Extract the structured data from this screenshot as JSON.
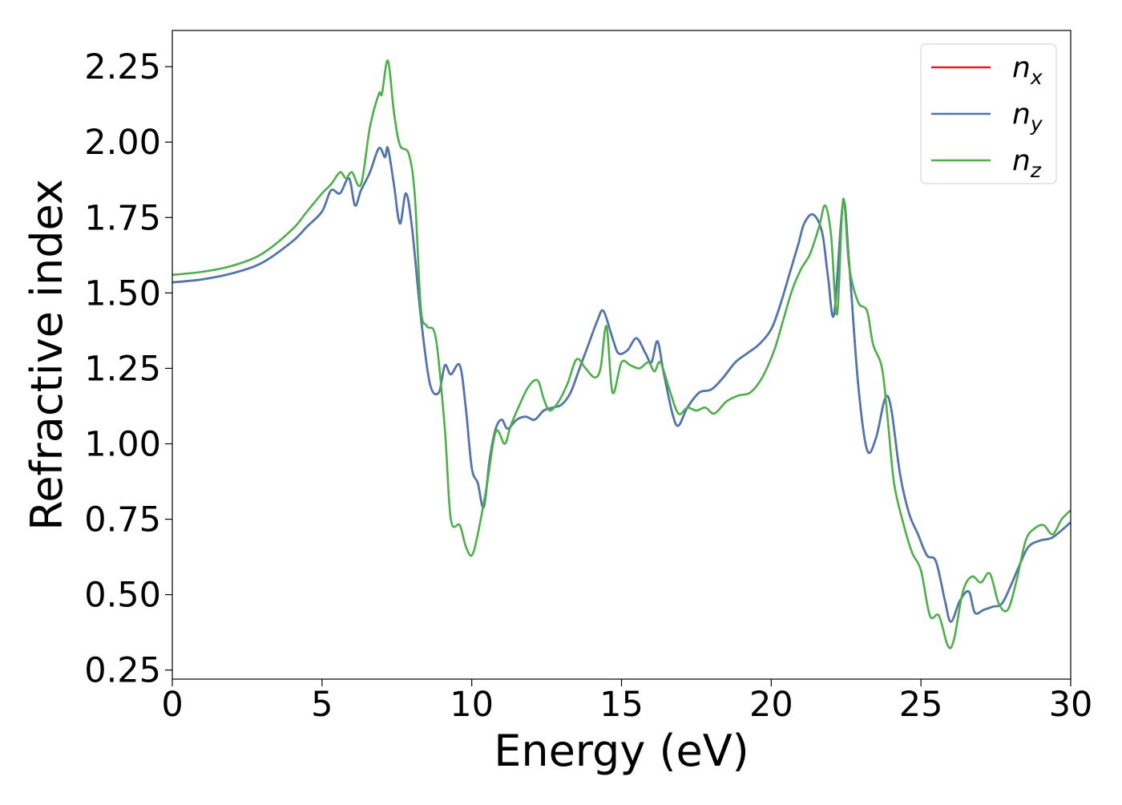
{
  "chart_data": {
    "type": "line",
    "xlabel": "Energy (eV)",
    "ylabel": "Refractive index",
    "xlim": [
      0,
      30
    ],
    "ylim": [
      0.22,
      2.37
    ],
    "xticks": [
      0,
      5,
      10,
      15,
      20,
      25,
      30
    ],
    "xtick_labels": [
      "0",
      "5",
      "10",
      "15",
      "20",
      "25",
      "30"
    ],
    "yticks": [
      0.25,
      0.5,
      0.75,
      1.0,
      1.25,
      1.5,
      1.75,
      2.0,
      2.25
    ],
    "ytick_labels": [
      "0.25",
      "0.50",
      "0.75",
      "1.00",
      "1.25",
      "1.50",
      "1.75",
      "2.00",
      "2.25"
    ],
    "grid": false,
    "legend_position": "top-right",
    "series": [
      {
        "name": "n_x",
        "legend_base": "n",
        "legend_sub": "x",
        "color": "#e41a1c",
        "x": [
          0,
          1,
          2,
          3,
          4,
          4.5,
          5,
          5.3,
          5.6,
          5.9,
          6.1,
          6.3,
          6.6,
          6.9,
          7.1,
          7.2,
          7.4,
          7.6,
          7.8,
          8.0,
          8.3,
          8.6,
          8.9,
          9.1,
          9.3,
          9.6,
          9.8,
          10.0,
          10.2,
          10.4,
          10.6,
          10.8,
          11.0,
          11.2,
          11.5,
          11.8,
          12.1,
          12.4,
          12.7,
          13.0,
          13.3,
          13.6,
          13.9,
          14.2,
          14.4,
          14.7,
          14.9,
          15.2,
          15.5,
          15.8,
          16.0,
          16.2,
          16.4,
          16.7,
          16.9,
          17.2,
          17.6,
          18.0,
          18.4,
          18.8,
          19.2,
          19.6,
          20.0,
          20.3,
          20.6,
          20.9,
          21.1,
          21.4,
          21.7,
          21.9,
          22.1,
          22.4,
          22.6,
          22.9,
          23.2,
          23.5,
          23.8,
          24.0,
          24.3,
          24.6,
          24.9,
          25.2,
          25.5,
          25.8,
          26.0,
          26.3,
          26.6,
          26.8,
          27.1,
          27.4,
          27.7,
          28.0,
          28.3,
          28.6,
          29.0,
          29.4,
          30.0
        ],
        "y": [
          1.535,
          1.545,
          1.565,
          1.6,
          1.67,
          1.72,
          1.77,
          1.84,
          1.83,
          1.88,
          1.79,
          1.84,
          1.9,
          1.98,
          1.95,
          1.98,
          1.86,
          1.73,
          1.83,
          1.72,
          1.42,
          1.2,
          1.17,
          1.26,
          1.23,
          1.26,
          1.12,
          0.92,
          0.87,
          0.79,
          0.95,
          1.05,
          1.08,
          1.05,
          1.08,
          1.09,
          1.08,
          1.11,
          1.12,
          1.13,
          1.17,
          1.25,
          1.33,
          1.41,
          1.44,
          1.35,
          1.3,
          1.31,
          1.35,
          1.3,
          1.27,
          1.34,
          1.24,
          1.1,
          1.06,
          1.12,
          1.17,
          1.18,
          1.22,
          1.27,
          1.3,
          1.33,
          1.38,
          1.46,
          1.56,
          1.66,
          1.73,
          1.76,
          1.7,
          1.55,
          1.43,
          1.8,
          1.6,
          1.2,
          0.98,
          1.02,
          1.15,
          1.12,
          0.9,
          0.77,
          0.7,
          0.63,
          0.61,
          0.48,
          0.41,
          0.48,
          0.51,
          0.44,
          0.45,
          0.46,
          0.47,
          0.53,
          0.6,
          0.66,
          0.68,
          0.69,
          0.74
        ]
      },
      {
        "name": "n_y",
        "legend_base": "n",
        "legend_sub": "y",
        "color": "#4a78b0",
        "x": [
          0,
          1,
          2,
          3,
          4,
          4.5,
          5,
          5.3,
          5.6,
          5.9,
          6.1,
          6.3,
          6.6,
          6.9,
          7.1,
          7.2,
          7.4,
          7.6,
          7.8,
          8.0,
          8.3,
          8.6,
          8.9,
          9.1,
          9.3,
          9.6,
          9.8,
          10.0,
          10.2,
          10.4,
          10.6,
          10.8,
          11.0,
          11.2,
          11.5,
          11.8,
          12.1,
          12.4,
          12.7,
          13.0,
          13.3,
          13.6,
          13.9,
          14.2,
          14.4,
          14.7,
          14.9,
          15.2,
          15.5,
          15.8,
          16.0,
          16.2,
          16.4,
          16.7,
          16.9,
          17.2,
          17.6,
          18.0,
          18.4,
          18.8,
          19.2,
          19.6,
          20.0,
          20.3,
          20.6,
          20.9,
          21.1,
          21.4,
          21.7,
          21.9,
          22.1,
          22.4,
          22.6,
          22.9,
          23.2,
          23.5,
          23.8,
          24.0,
          24.3,
          24.6,
          24.9,
          25.2,
          25.5,
          25.8,
          26.0,
          26.3,
          26.6,
          26.8,
          27.1,
          27.4,
          27.7,
          28.0,
          28.3,
          28.6,
          29.0,
          29.4,
          30.0
        ],
        "y": [
          1.535,
          1.545,
          1.565,
          1.6,
          1.67,
          1.72,
          1.77,
          1.84,
          1.83,
          1.88,
          1.79,
          1.84,
          1.9,
          1.98,
          1.95,
          1.98,
          1.86,
          1.73,
          1.83,
          1.72,
          1.42,
          1.2,
          1.17,
          1.26,
          1.23,
          1.26,
          1.12,
          0.92,
          0.87,
          0.79,
          0.95,
          1.05,
          1.08,
          1.05,
          1.08,
          1.09,
          1.08,
          1.11,
          1.12,
          1.13,
          1.17,
          1.25,
          1.33,
          1.41,
          1.44,
          1.35,
          1.3,
          1.31,
          1.35,
          1.3,
          1.27,
          1.34,
          1.24,
          1.1,
          1.06,
          1.12,
          1.17,
          1.18,
          1.22,
          1.27,
          1.3,
          1.33,
          1.38,
          1.46,
          1.56,
          1.66,
          1.73,
          1.76,
          1.7,
          1.55,
          1.43,
          1.8,
          1.6,
          1.2,
          0.98,
          1.02,
          1.15,
          1.12,
          0.9,
          0.77,
          0.7,
          0.63,
          0.61,
          0.48,
          0.41,
          0.48,
          0.51,
          0.44,
          0.45,
          0.46,
          0.47,
          0.53,
          0.6,
          0.66,
          0.68,
          0.69,
          0.74
        ]
      },
      {
        "name": "n_z",
        "legend_base": "n",
        "legend_sub": "z",
        "color": "#4daf4a",
        "x": [
          0,
          1,
          2,
          3,
          4,
          4.5,
          5,
          5.3,
          5.6,
          5.8,
          6.0,
          6.3,
          6.6,
          6.9,
          7.0,
          7.2,
          7.4,
          7.6,
          7.9,
          8.1,
          8.3,
          8.5,
          8.8,
          9.1,
          9.3,
          9.6,
          9.8,
          10.0,
          10.2,
          10.5,
          10.8,
          11.1,
          11.3,
          11.6,
          11.9,
          12.2,
          12.4,
          12.6,
          12.9,
          13.2,
          13.5,
          13.8,
          14.1,
          14.3,
          14.5,
          14.7,
          15.0,
          15.3,
          15.6,
          15.9,
          16.1,
          16.3,
          16.6,
          16.9,
          17.2,
          17.5,
          17.8,
          18.1,
          18.5,
          18.9,
          19.3,
          19.7,
          20.1,
          20.4,
          20.7,
          21.0,
          21.3,
          21.6,
          21.8,
          22.0,
          22.2,
          22.4,
          22.6,
          22.9,
          23.2,
          23.4,
          23.7,
          23.9,
          24.1,
          24.4,
          24.7,
          25.0,
          25.3,
          25.6,
          25.9,
          26.1,
          26.4,
          26.7,
          27.0,
          27.3,
          27.6,
          27.9,
          28.2,
          28.5,
          28.8,
          29.1,
          29.4,
          29.7,
          30.0
        ],
        "y": [
          1.56,
          1.57,
          1.59,
          1.63,
          1.71,
          1.77,
          1.83,
          1.86,
          1.9,
          1.88,
          1.9,
          1.86,
          2.05,
          2.16,
          2.16,
          2.27,
          2.1,
          1.99,
          1.96,
          1.82,
          1.45,
          1.39,
          1.35,
          1.05,
          0.75,
          0.73,
          0.66,
          0.63,
          0.7,
          0.86,
          1.04,
          1.0,
          1.06,
          1.13,
          1.19,
          1.21,
          1.15,
          1.11,
          1.14,
          1.2,
          1.28,
          1.25,
          1.22,
          1.25,
          1.39,
          1.17,
          1.27,
          1.26,
          1.25,
          1.27,
          1.24,
          1.27,
          1.18,
          1.1,
          1.12,
          1.11,
          1.12,
          1.1,
          1.14,
          1.16,
          1.17,
          1.22,
          1.31,
          1.41,
          1.51,
          1.58,
          1.63,
          1.72,
          1.79,
          1.69,
          1.43,
          1.81,
          1.59,
          1.47,
          1.44,
          1.33,
          1.25,
          1.07,
          0.87,
          0.74,
          0.64,
          0.58,
          0.43,
          0.43,
          0.33,
          0.35,
          0.51,
          0.56,
          0.54,
          0.57,
          0.47,
          0.45,
          0.55,
          0.68,
          0.72,
          0.73,
          0.7,
          0.75,
          0.78
        ]
      }
    ]
  }
}
